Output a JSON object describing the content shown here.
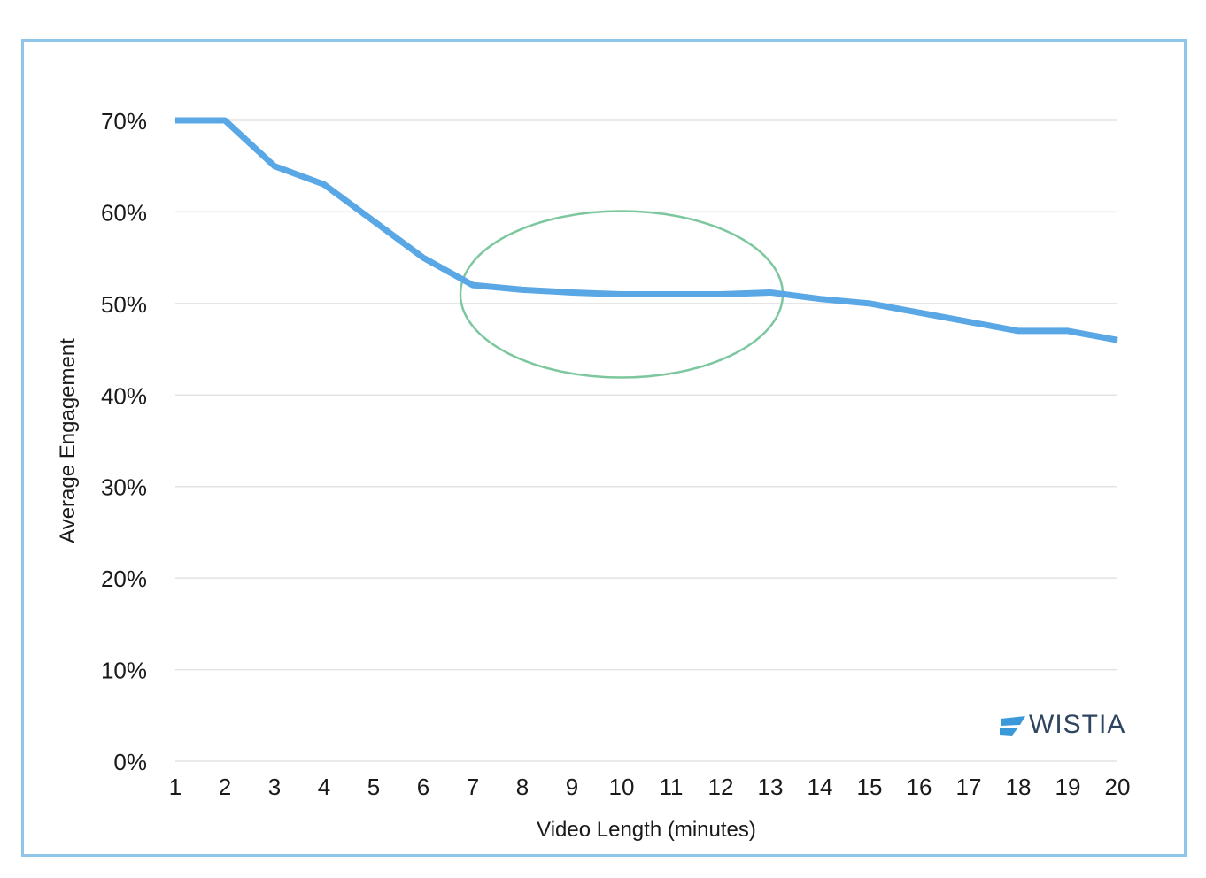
{
  "chart_data": {
    "type": "line",
    "title": "",
    "xlabel": "Video Length (minutes)",
    "ylabel": "Average Engagement",
    "x": [
      1,
      2,
      3,
      4,
      5,
      6,
      7,
      8,
      9,
      10,
      11,
      12,
      13,
      14,
      15,
      16,
      17,
      18,
      19,
      20
    ],
    "x_tick_labels": [
      "1",
      "2",
      "3",
      "4",
      "5",
      "6",
      "7",
      "8",
      "9",
      "10",
      "11",
      "12",
      "13",
      "14",
      "15",
      "16",
      "17",
      "18",
      "19",
      "20"
    ],
    "series": [
      {
        "values": [
          70,
          70,
          65,
          63,
          59,
          55,
          52,
          51.5,
          51.2,
          51,
          51,
          51,
          51.2,
          50.5,
          50,
          49,
          48,
          47,
          47,
          46
        ],
        "color": "#5aa7e6"
      }
    ],
    "ylim": [
      0,
      70
    ],
    "y_ticks": [
      0,
      10,
      20,
      30,
      40,
      50,
      60,
      70
    ],
    "y_tick_labels": [
      "0%",
      "10%",
      "20%",
      "30%",
      "40%",
      "50%",
      "60%",
      "70%"
    ],
    "grid": true,
    "legend": "none",
    "annotation": {
      "shape": "ellipse",
      "highlights_x_range": [
        7,
        13
      ],
      "center_x": 10,
      "center_y": 51,
      "color": "#7cc79e"
    },
    "gridline_color": "#e3e3e3"
  },
  "brand": {
    "logo_text": "WISTIA",
    "logo_color": "#2e4560",
    "logo_accent": "#3a9ad9"
  },
  "frame_color": "#8fc5e8"
}
